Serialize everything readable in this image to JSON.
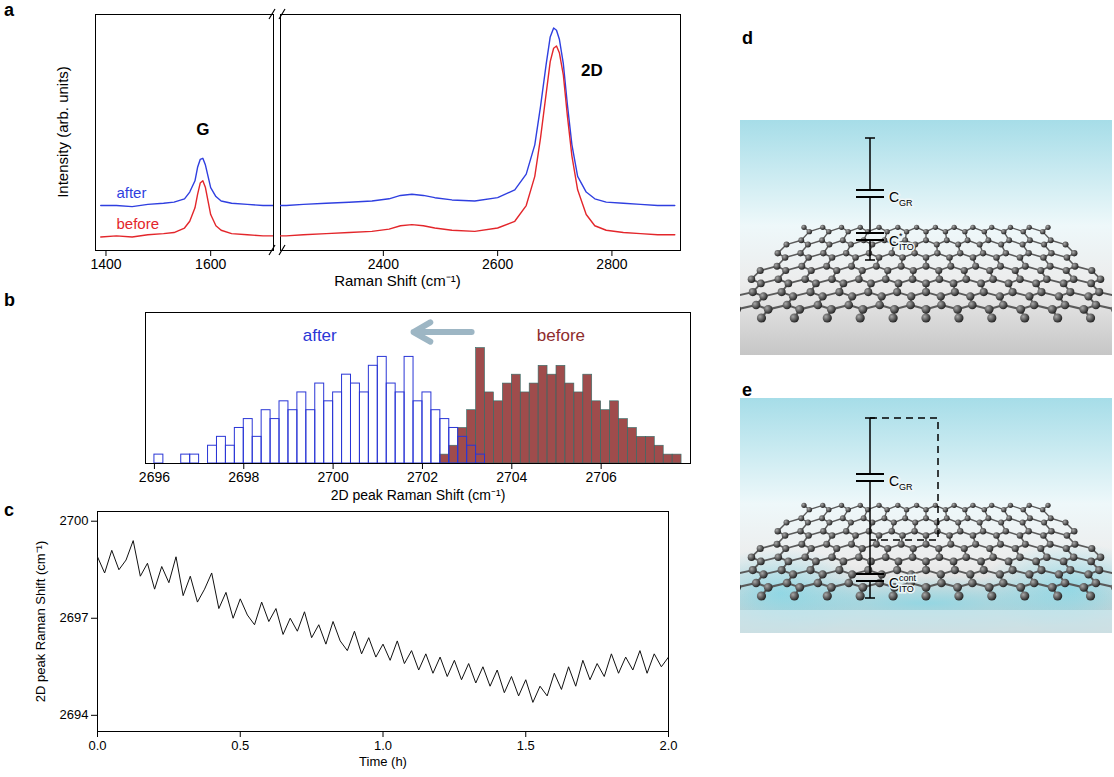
{
  "chart_data": [
    {
      "panel": "a",
      "type": "line",
      "x_label": "Raman Shift (cm⁻¹)",
      "y_label": "Intensity (arb. units)",
      "x": [
        1390,
        1420,
        1450,
        1480,
        1510,
        1530,
        1550,
        1560,
        1570,
        1575,
        1580,
        1585,
        1590,
        1595,
        1600,
        1610,
        1620,
        1640,
        1670,
        1700,
        1720,
        2230,
        2260,
        2300,
        2340,
        2380,
        2410,
        2430,
        2450,
        2470,
        2490,
        2520,
        2560,
        2600,
        2630,
        2650,
        2665,
        2675,
        2685,
        2692,
        2698,
        2703,
        2708,
        2715,
        2722,
        2730,
        2740,
        2755,
        2770,
        2790,
        2820,
        2850,
        2880,
        2910
      ],
      "series": [
        {
          "name": "after",
          "color": "#2f3fe0",
          "values": [
            0.2,
            0.2,
            0.195,
            0.205,
            0.21,
            0.215,
            0.23,
            0.26,
            0.31,
            0.37,
            0.405,
            0.41,
            0.38,
            0.33,
            0.28,
            0.24,
            0.22,
            0.21,
            0.205,
            0.2,
            0.2,
            0.2,
            0.205,
            0.21,
            0.215,
            0.22,
            0.23,
            0.245,
            0.25,
            0.245,
            0.235,
            0.225,
            0.22,
            0.235,
            0.27,
            0.34,
            0.47,
            0.64,
            0.83,
            0.95,
            0.99,
            0.98,
            0.94,
            0.83,
            0.65,
            0.47,
            0.33,
            0.26,
            0.23,
            0.215,
            0.21,
            0.205,
            0.2,
            0.2
          ]
        },
        {
          "name": "before",
          "color": "#e3262b",
          "values": [
            0.06,
            0.065,
            0.06,
            0.07,
            0.075,
            0.08,
            0.1,
            0.13,
            0.19,
            0.25,
            0.3,
            0.31,
            0.28,
            0.22,
            0.16,
            0.11,
            0.09,
            0.075,
            0.07,
            0.065,
            0.065,
            0.065,
            0.07,
            0.075,
            0.08,
            0.085,
            0.095,
            0.11,
            0.115,
            0.11,
            0.1,
            0.09,
            0.085,
            0.1,
            0.13,
            0.2,
            0.33,
            0.5,
            0.7,
            0.84,
            0.9,
            0.91,
            0.88,
            0.78,
            0.6,
            0.42,
            0.27,
            0.16,
            0.11,
            0.09,
            0.08,
            0.075,
            0.07,
            0.07
          ]
        }
      ],
      "xlim": [
        1380,
        2920
      ],
      "axis_break": [
        1720,
        2220
      ],
      "xticks": [
        1400,
        1600,
        2400,
        2600,
        2800
      ],
      "ylim": [
        0,
        1.05
      ],
      "tick_labels": "x",
      "annotations": [
        {
          "text": "G",
          "x": 1585,
          "y": 0.54
        },
        {
          "text": "2D",
          "x": 2765,
          "y": 0.8
        }
      ]
    },
    {
      "panel": "b",
      "type": "histogram",
      "x_label": "2D peak Raman Shift (cm⁻¹)",
      "series": [
        {
          "name": "after",
          "color": "#2a36d6",
          "bins": [
            2696.0,
            2696.2,
            2696.4,
            2696.6,
            2696.8,
            2697.0,
            2697.2,
            2697.4,
            2697.6,
            2697.8,
            2698.0,
            2698.2,
            2698.4,
            2698.6,
            2698.8,
            2699.0,
            2699.2,
            2699.4,
            2699.6,
            2699.8,
            2700.0,
            2700.2,
            2700.4,
            2700.6,
            2700.8,
            2701.0,
            2701.2,
            2701.4,
            2701.6,
            2701.8,
            2702.0,
            2702.2,
            2702.4,
            2702.6,
            2702.8,
            2703.0,
            2703.2,
            2703.4
          ],
          "values": [
            1,
            0,
            0,
            1,
            1,
            0,
            2,
            3,
            2,
            4,
            5,
            3,
            6,
            5,
            7,
            6,
            8,
            6,
            9,
            7,
            8,
            10,
            9,
            8,
            11,
            12,
            9,
            8,
            12,
            7,
            8,
            6,
            5,
            4,
            3,
            2,
            1
          ]
        },
        {
          "name": "before",
          "color": "#8e2d2d",
          "bins": [
            2702.4,
            2702.6,
            2702.8,
            2703.0,
            2703.2,
            2703.4,
            2703.6,
            2703.8,
            2704.0,
            2704.2,
            2704.4,
            2704.6,
            2704.8,
            2705.0,
            2705.2,
            2705.4,
            2705.6,
            2705.8,
            2706.0,
            2706.2,
            2706.4,
            2706.6,
            2706.8,
            2707.0,
            2707.2,
            2707.4,
            2707.6,
            2707.8
          ],
          "values": [
            1,
            2,
            4,
            6,
            13,
            8,
            7,
            9,
            10,
            8,
            9,
            11,
            10,
            11,
            9,
            8,
            10,
            7,
            6,
            7,
            5,
            4,
            3,
            3,
            2,
            1,
            1
          ]
        }
      ],
      "xlim": [
        2695.8,
        2708
      ],
      "xticks": [
        2696,
        2698,
        2700,
        2702,
        2704,
        2706
      ],
      "ylim": [
        0,
        17
      ],
      "tick_labels": "x",
      "annotations": [
        {
          "type": "arrow",
          "x1": 2703.1,
          "x2": 2701.8,
          "y": 14.8
        }
      ]
    },
    {
      "panel": "c",
      "type": "line",
      "x_label": "Time (h)",
      "y_label": "2D peak Raman Shift (cm⁻¹)",
      "x": [
        0,
        0.025,
        0.05,
        0.075,
        0.1,
        0.125,
        0.15,
        0.175,
        0.2,
        0.225,
        0.25,
        0.275,
        0.3,
        0.325,
        0.35,
        0.375,
        0.4,
        0.425,
        0.45,
        0.475,
        0.5,
        0.525,
        0.55,
        0.575,
        0.6,
        0.625,
        0.65,
        0.675,
        0.7,
        0.725,
        0.75,
        0.775,
        0.8,
        0.825,
        0.85,
        0.875,
        0.9,
        0.925,
        0.95,
        0.975,
        1,
        1.025,
        1.05,
        1.075,
        1.1,
        1.125,
        1.15,
        1.175,
        1.2,
        1.225,
        1.25,
        1.275,
        1.3,
        1.325,
        1.35,
        1.375,
        1.4,
        1.425,
        1.45,
        1.475,
        1.5,
        1.525,
        1.55,
        1.575,
        1.6,
        1.625,
        1.65,
        1.675,
        1.7,
        1.725,
        1.75,
        1.775,
        1.8,
        1.825,
        1.85,
        1.875,
        1.9,
        1.925,
        1.95,
        1.975,
        2
      ],
      "values": [
        2698.9,
        2698.4,
        2699.1,
        2698.5,
        2698.8,
        2699.4,
        2698.3,
        2698.7,
        2697.9,
        2698.6,
        2698.1,
        2698.9,
        2697.7,
        2698.3,
        2697.5,
        2697.9,
        2698.4,
        2697.3,
        2697.8,
        2697.0,
        2697.6,
        2697.1,
        2696.8,
        2697.5,
        2696.9,
        2697.3,
        2696.5,
        2697.0,
        2696.6,
        2697.2,
        2696.4,
        2696.8,
        2696.2,
        2696.9,
        2696.3,
        2696.0,
        2696.6,
        2695.9,
        2696.4,
        2695.8,
        2696.2,
        2695.7,
        2696.3,
        2695.6,
        2696.0,
        2695.4,
        2695.9,
        2695.3,
        2695.8,
        2695.2,
        2695.7,
        2695.1,
        2695.6,
        2695.0,
        2695.5,
        2694.9,
        2695.4,
        2694.7,
        2695.2,
        2694.6,
        2695.1,
        2694.4,
        2694.9,
        2694.6,
        2695.3,
        2694.8,
        2695.5,
        2694.9,
        2695.7,
        2695.1,
        2695.6,
        2695.2,
        2695.9,
        2695.3,
        2695.8,
        2695.4,
        2696.0,
        2695.3,
        2695.9,
        2695.5,
        2695.8
      ],
      "color": "#111111",
      "xlim": [
        0,
        2
      ],
      "xticks": [
        {
          "value": 0,
          "label": "0.0"
        },
        0.5,
        {
          "value": 1,
          "label": "1.0"
        },
        1.5,
        {
          "value": 2,
          "label": "2.0"
        }
      ],
      "ylim": [
        2693.5,
        2700.3
      ],
      "yticks": [
        2694,
        2697,
        2700
      ]
    }
  ],
  "diagrams": [
    {
      "panel": "d",
      "capacitors": [
        {
          "base": "C",
          "sub": "GR"
        },
        {
          "base": "C",
          "sup": "*",
          "sub": "ITO"
        }
      ]
    },
    {
      "panel": "e",
      "capacitors": [
        {
          "base": "C",
          "sub": "GR"
        },
        {
          "base": "C",
          "sup": "cont",
          "sub": "ITO"
        }
      ]
    }
  ]
}
